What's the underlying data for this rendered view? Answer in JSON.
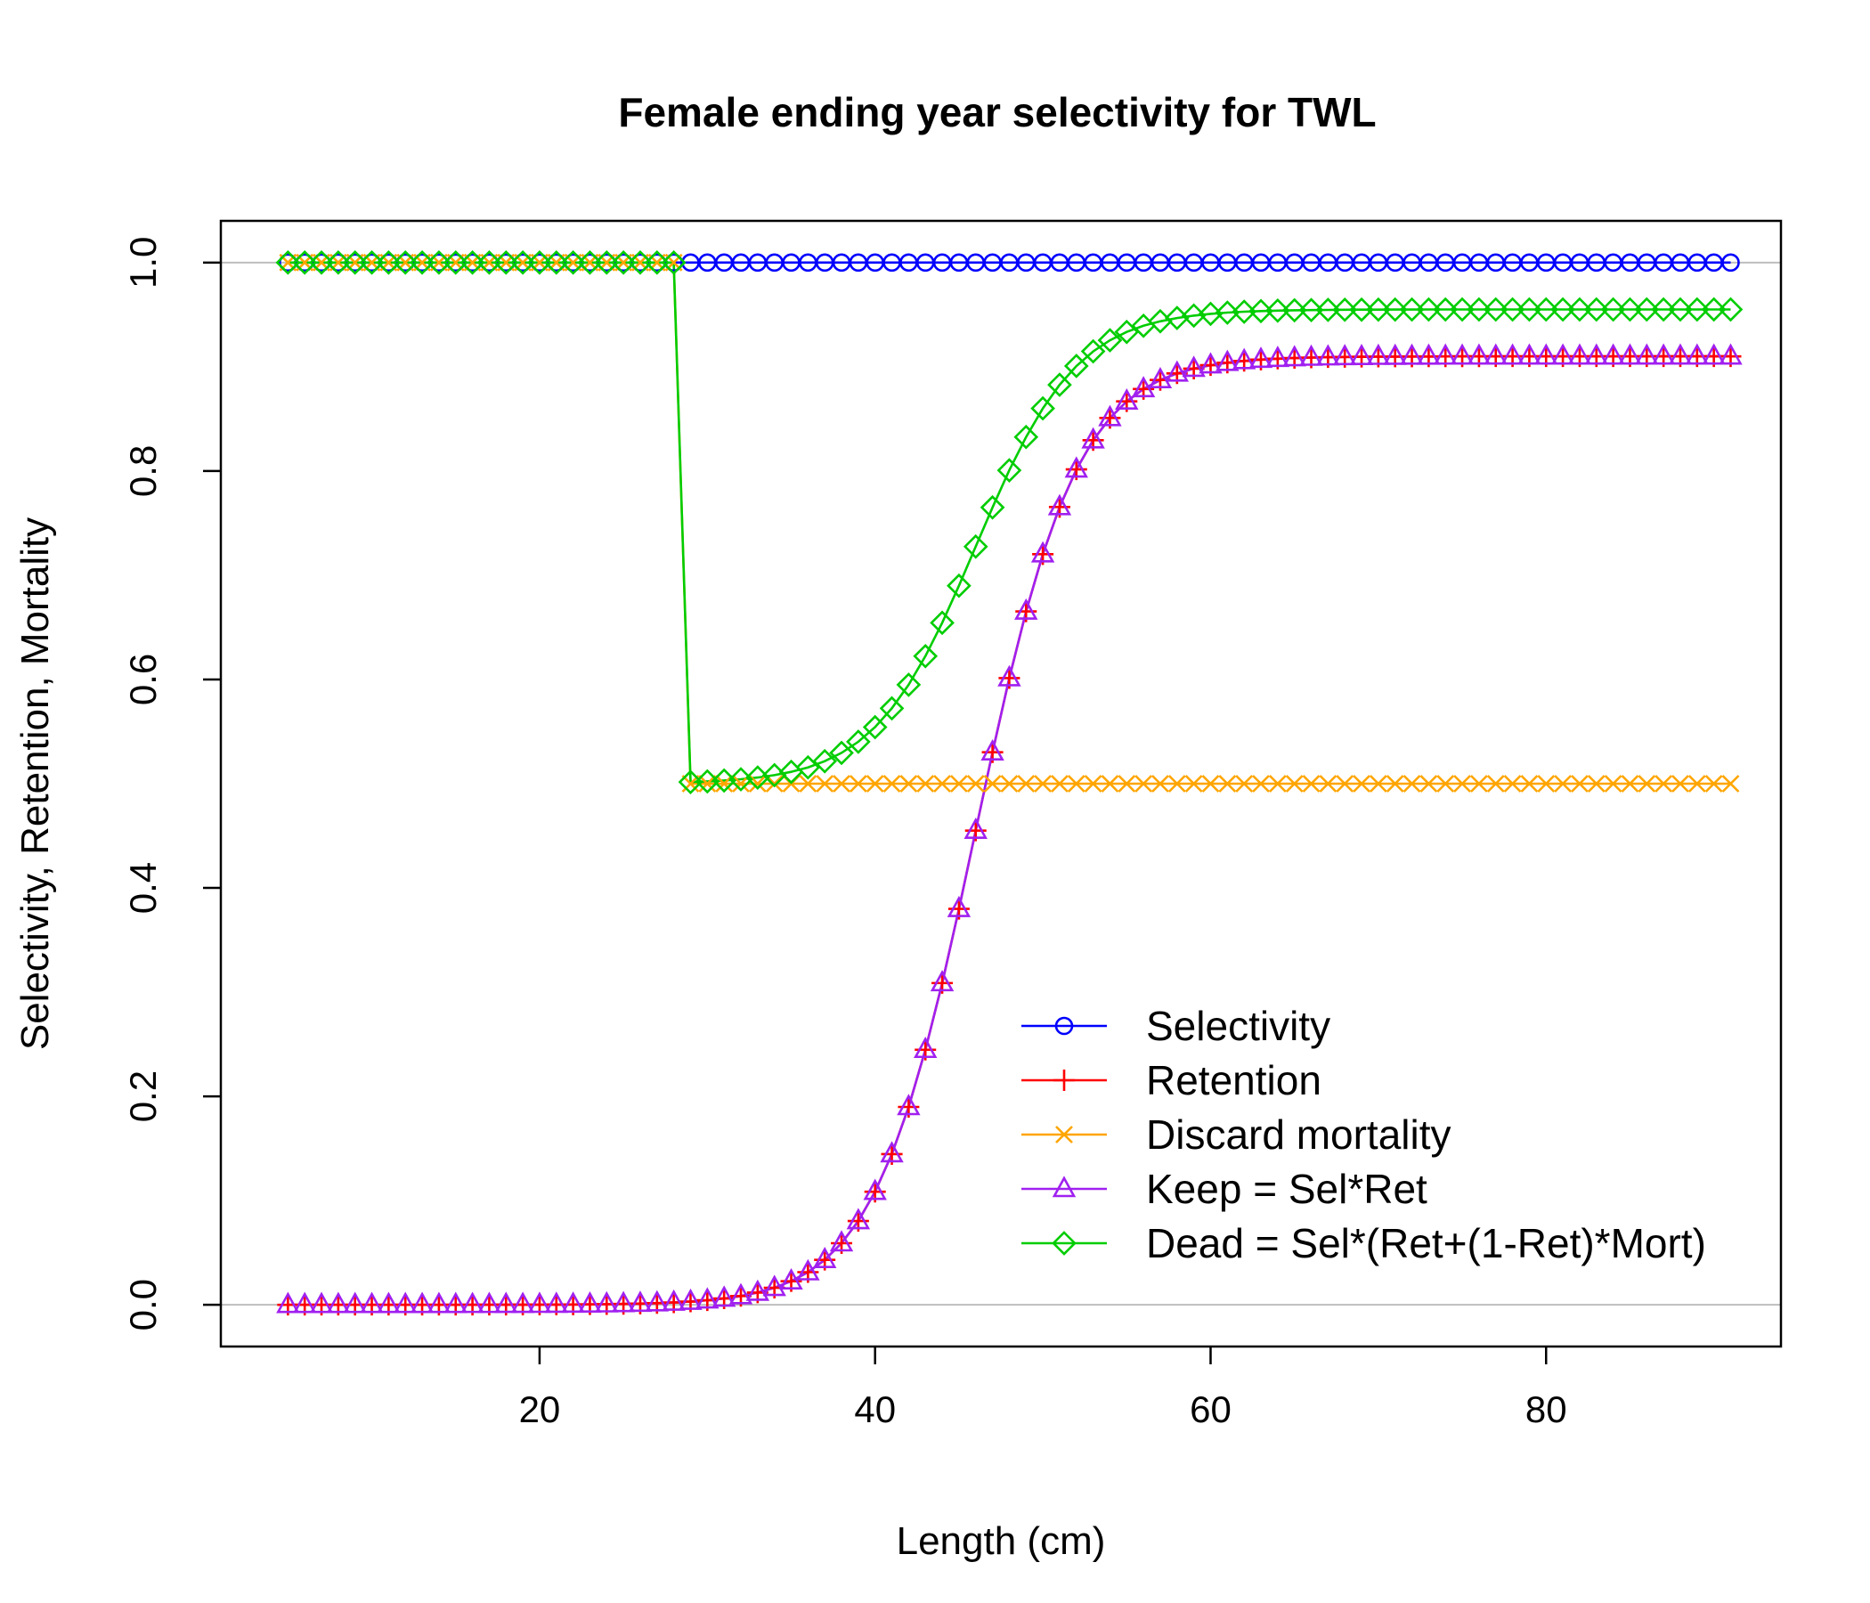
{
  "chart_data": {
    "type": "line",
    "title": "Female ending year selectivity for TWL",
    "xlabel": "Length (cm)",
    "ylabel": "Selectivity, Retention, Mortality",
    "xlim": [
      1,
      94
    ],
    "ylim": [
      -0.04,
      1.04
    ],
    "xticks": [
      20,
      40,
      60,
      80
    ],
    "yticks": [
      0,
      0.2,
      0.4,
      0.6,
      0.8,
      1
    ],
    "ytick_labels": [
      "0.0",
      "0.2",
      "0.4",
      "0.6",
      "0.8",
      "1.0"
    ],
    "reference_lines": [
      0,
      1
    ],
    "grid": false,
    "legend_position": "bottom-right",
    "length_bins": {
      "start": 5,
      "end": 91,
      "step": 1
    },
    "retention_logistic": {
      "asymptote": 0.91,
      "inflection": 46,
      "width": 3
    },
    "discard_mortality": {
      "below_break": 1.0,
      "at_and_above_break": 0.5,
      "break_length": 29
    },
    "series": [
      {
        "key": "sel",
        "name": "Selectivity",
        "color": "#0000ff",
        "marker": "circle"
      },
      {
        "key": "ret",
        "name": "Retention",
        "color": "#ff0000",
        "marker": "plus"
      },
      {
        "key": "mort",
        "name": "Discard mortality",
        "color": "#ffa500",
        "marker": "cross"
      },
      {
        "key": "keep",
        "name": "Keep = Sel*Ret",
        "color": "#a020f0",
        "marker": "triangle"
      },
      {
        "key": "dead",
        "name": "Dead = Sel*(Ret+(1-Ret)*Mort)",
        "color": "#00cd00",
        "marker": "diamond"
      }
    ]
  }
}
